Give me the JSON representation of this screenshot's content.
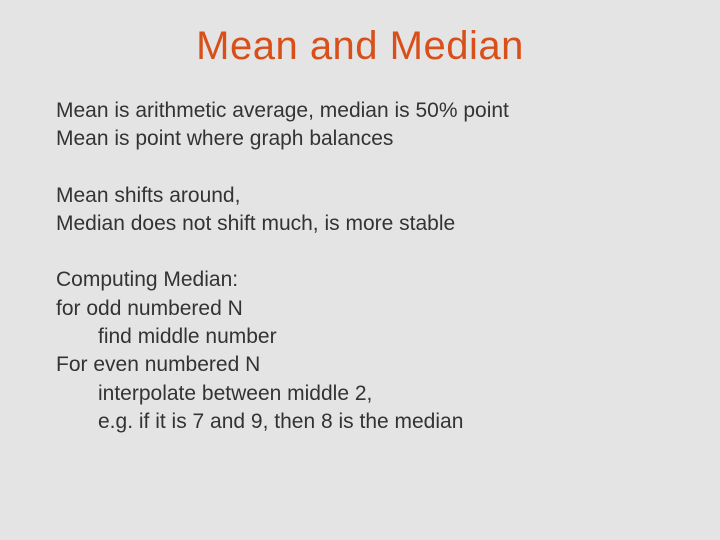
{
  "background_color": "#e4e4e4",
  "title_color": "#d94f1a",
  "text_color": "#333333",
  "font_family": "Verdana, Geneva, sans-serif",
  "title_fontsize": 40,
  "body_fontsize": 21,
  "title": "Mean and Median",
  "para1_line1": "Mean is arithmetic average, median is 50% point",
  "para1_line2": "Mean is point where graph balances",
  "para2_line1": "Mean shifts around,",
  "para2_line2": "Median does not shift much, is more stable",
  "para3_line1": "Computing Median:",
  "para3_line2": "for odd numbered N",
  "para3_line3": "find middle number",
  "para3_line4": "For even numbered N",
  "para3_line5": "interpolate between middle 2,",
  "para3_line6": "e.g. if it is 7 and 9, then 8 is the median"
}
